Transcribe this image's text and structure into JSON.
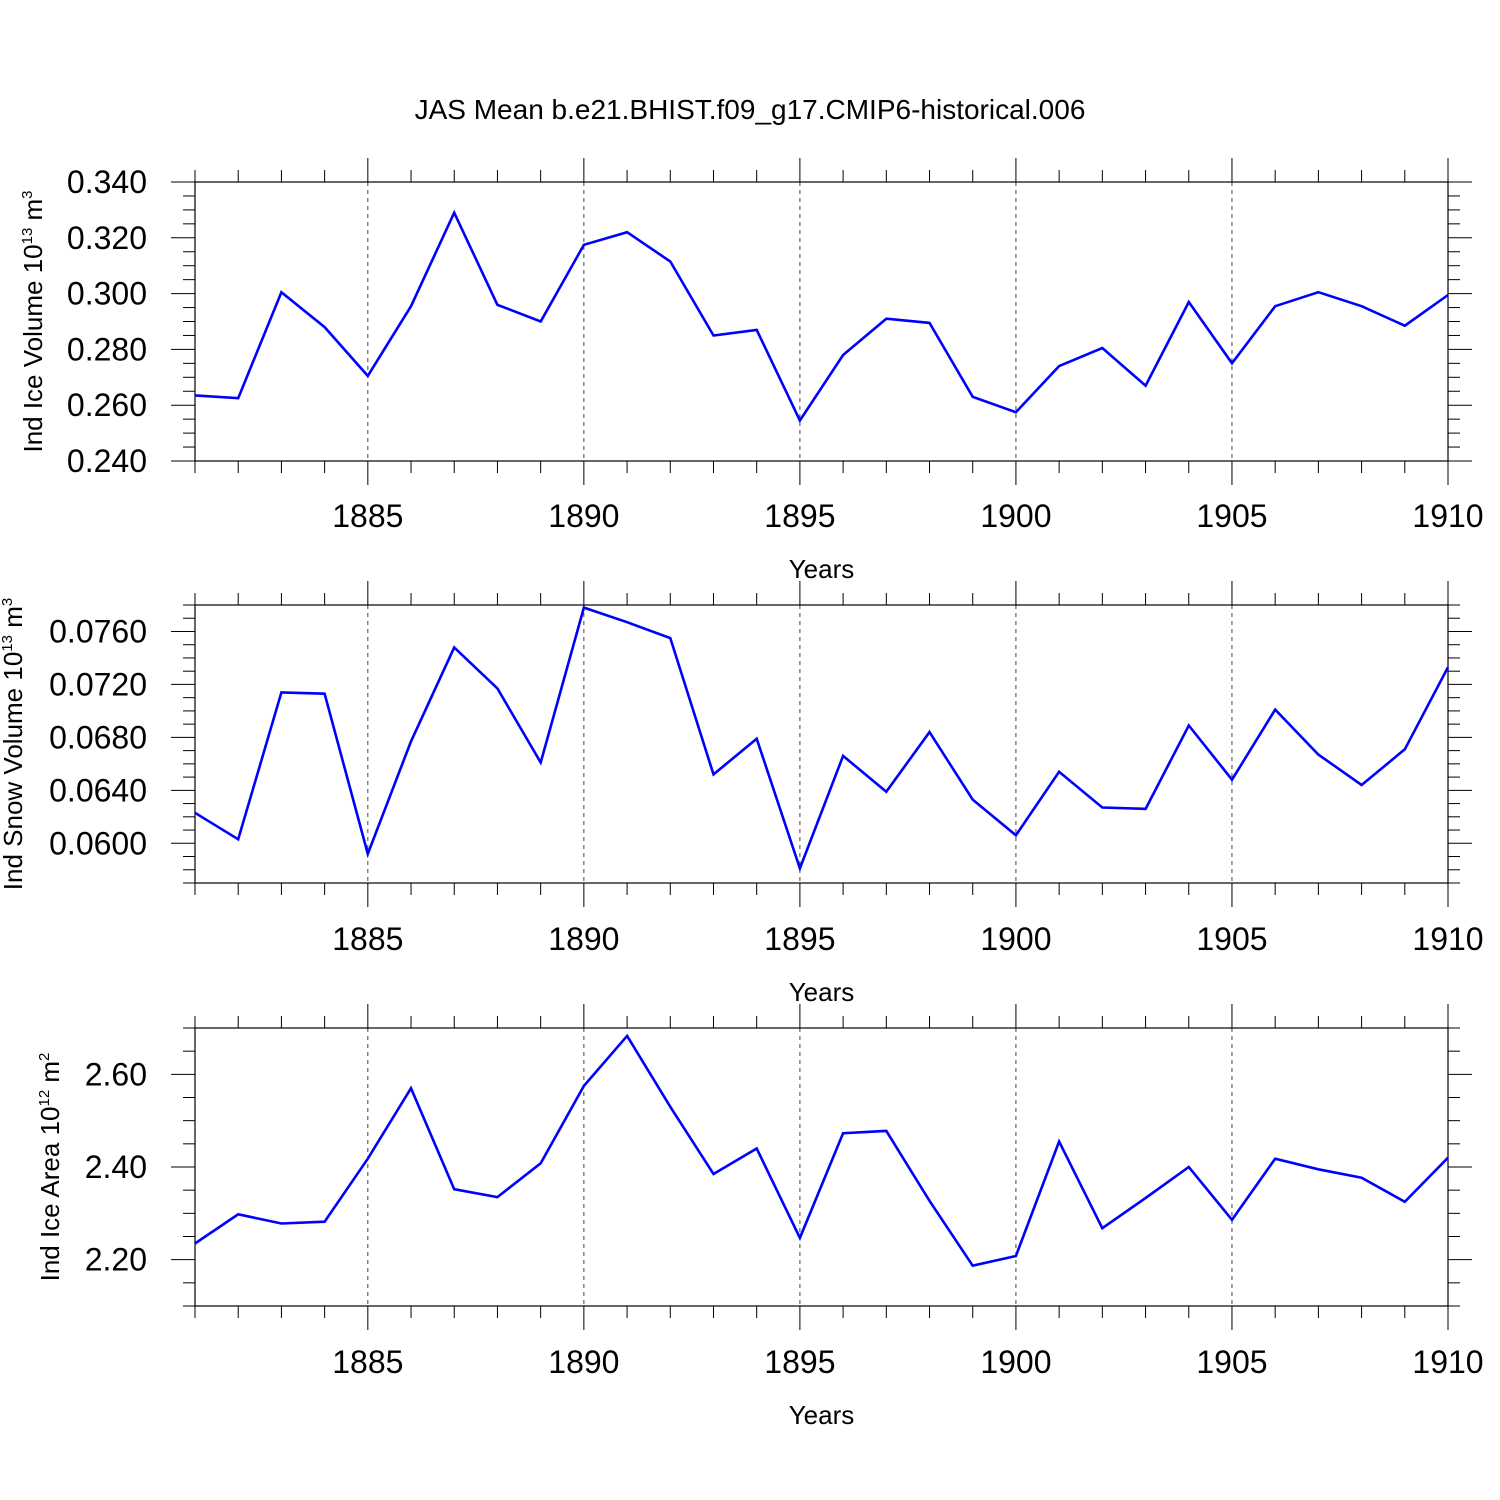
{
  "title": "JAS Mean b.e21.BHIST.f09_g17.CMIP6-historical.006",
  "chart_data": [
    {
      "type": "line",
      "xlabel": "Years",
      "ylabel": {
        "prefix": "Ind Ice Volume 10",
        "exponent": "13",
        "unit": " m",
        "unit_exponent": "3"
      },
      "xlim": [
        1881,
        1910
      ],
      "ylim": [
        0.24,
        0.34
      ],
      "x_ticks": [
        1885,
        1890,
        1895,
        1900,
        1905,
        1910
      ],
      "y_ticks": [
        0.24,
        0.26,
        0.28,
        0.3,
        0.32,
        0.34
      ],
      "y_tick_labels": [
        "0.240",
        "0.260",
        "0.280",
        "0.300",
        "0.320",
        "0.340"
      ],
      "y_minor_step": 0.005,
      "grid": "dashed vertical at x ticks",
      "series": [
        {
          "name": "Ind Ice Volume",
          "color": "#0000ff",
          "x": [
            1881,
            1882,
            1883,
            1884,
            1885,
            1886,
            1887,
            1888,
            1889,
            1890,
            1891,
            1892,
            1893,
            1894,
            1895,
            1896,
            1897,
            1898,
            1899,
            1900,
            1901,
            1902,
            1903,
            1904,
            1905,
            1906,
            1907,
            1908,
            1909,
            1910
          ],
          "values": [
            0.2635,
            0.2625,
            0.3005,
            0.288,
            0.2705,
            0.2955,
            0.329,
            0.296,
            0.29,
            0.3175,
            0.322,
            0.3115,
            0.285,
            0.287,
            0.2545,
            0.278,
            0.291,
            0.2895,
            0.263,
            0.2575,
            0.274,
            0.2805,
            0.267,
            0.297,
            0.275,
            0.2955,
            0.3005,
            0.2955,
            0.2885,
            0.2995
          ]
        }
      ]
    },
    {
      "type": "line",
      "xlabel": "Years",
      "ylabel": {
        "prefix": "Ind Snow Volume 10",
        "exponent": "13",
        "unit": " m",
        "unit_exponent": "3"
      },
      "xlim": [
        1881,
        1910
      ],
      "ylim": [
        0.057,
        0.078
      ],
      "x_ticks": [
        1885,
        1890,
        1895,
        1900,
        1905,
        1910
      ],
      "y_ticks": [
        0.06,
        0.064,
        0.068,
        0.072,
        0.076
      ],
      "y_tick_labels": [
        "0.0600",
        "0.0640",
        "0.0680",
        "0.0720",
        "0.0760"
      ],
      "y_minor_step": 0.001,
      "grid": "dashed vertical at x ticks",
      "series": [
        {
          "name": "Ind Snow Volume",
          "color": "#0000ff",
          "x": [
            1881,
            1882,
            1883,
            1884,
            1885,
            1886,
            1887,
            1888,
            1889,
            1890,
            1891,
            1892,
            1893,
            1894,
            1895,
            1896,
            1897,
            1898,
            1899,
            1900,
            1901,
            1902,
            1903,
            1904,
            1905,
            1906,
            1907,
            1908,
            1909,
            1910
          ],
          "values": [
            0.0623,
            0.0603,
            0.0714,
            0.0713,
            0.0592,
            0.0677,
            0.0748,
            0.0717,
            0.0661,
            0.0778,
            0.0767,
            0.0755,
            0.0652,
            0.0679,
            0.0581,
            0.0666,
            0.0639,
            0.0684,
            0.0633,
            0.0606,
            0.0654,
            0.0627,
            0.0626,
            0.0689,
            0.0648,
            0.0701,
            0.0667,
            0.0644,
            0.0671,
            0.0733
          ]
        }
      ]
    },
    {
      "type": "line",
      "xlabel": "Years",
      "ylabel": {
        "prefix": "Ind Ice Area 10",
        "exponent": "12",
        "unit": " m",
        "unit_exponent": "2"
      },
      "xlim": [
        1881,
        1910
      ],
      "ylim": [
        2.1,
        2.7
      ],
      "x_ticks": [
        1885,
        1890,
        1895,
        1900,
        1905,
        1910
      ],
      "y_ticks": [
        2.2,
        2.4,
        2.6
      ],
      "y_tick_labels": [
        "2.20",
        "2.40",
        "2.60"
      ],
      "y_minor_step": 0.05,
      "grid": "dashed vertical at x ticks",
      "series": [
        {
          "name": "Ind Ice Area",
          "color": "#0000ff",
          "x": [
            1881,
            1882,
            1883,
            1884,
            1885,
            1886,
            1887,
            1888,
            1889,
            1890,
            1891,
            1892,
            1893,
            1894,
            1895,
            1896,
            1897,
            1898,
            1899,
            1900,
            1901,
            1902,
            1903,
            1904,
            1905,
            1906,
            1907,
            1908,
            1909,
            1910
          ],
          "values": [
            2.235,
            2.298,
            2.278,
            2.282,
            2.418,
            2.57,
            2.352,
            2.335,
            2.408,
            2.575,
            2.683,
            2.53,
            2.385,
            2.44,
            2.247,
            2.473,
            2.478,
            2.327,
            2.187,
            2.208,
            2.455,
            2.268,
            2.333,
            2.4,
            2.286,
            2.418,
            2.395,
            2.377,
            2.325,
            2.42
          ]
        }
      ]
    }
  ]
}
